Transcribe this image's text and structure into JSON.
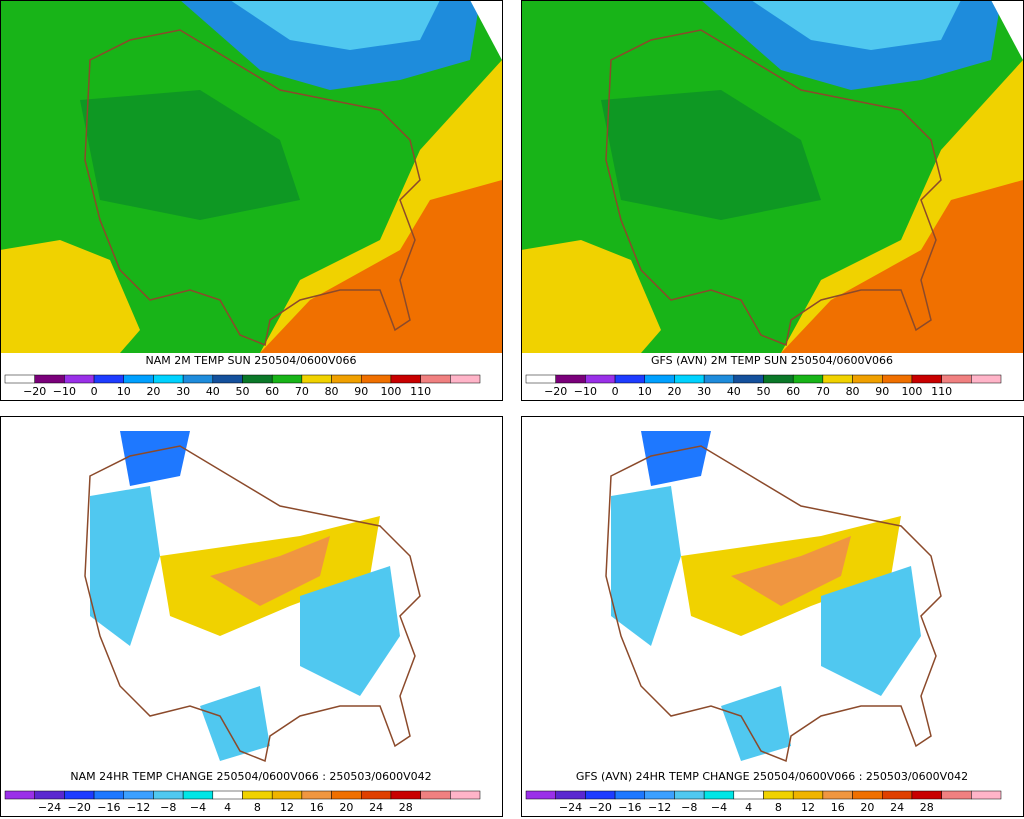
{
  "panels": [
    {
      "title": "NAM 2M TEMP  SUN 250504/0600V066",
      "colorbar": {
        "labels": [
          "−20",
          "−10",
          "0",
          "10",
          "20",
          "30",
          "40",
          "50",
          "60",
          "70",
          "80",
          "90",
          "100",
          "110"
        ],
        "colors": [
          "#ffffff",
          "#7a007a",
          "#9a30e8",
          "#1e3cff",
          "#00a0ff",
          "#00d2ff",
          "#1e8cdc",
          "#14509c",
          "#0a7828",
          "#18b418",
          "#f0d200",
          "#f0a000",
          "#f07000",
          "#c80000",
          "#f08080",
          "#ffb4c8"
        ]
      }
    },
    {
      "title": "GFS (AVN) 2M TEMP  SUN 250504/0600V066",
      "colorbar": {
        "labels": [
          "−20",
          "−10",
          "0",
          "10",
          "20",
          "30",
          "40",
          "50",
          "60",
          "70",
          "80",
          "90",
          "100",
          "110"
        ],
        "colors": [
          "#ffffff",
          "#7a007a",
          "#9a30e8",
          "#1e3cff",
          "#00a0ff",
          "#00d2ff",
          "#1e8cdc",
          "#14509c",
          "#0a7828",
          "#18b418",
          "#f0d200",
          "#f0a000",
          "#f07000",
          "#c80000",
          "#f08080",
          "#ffb4c8"
        ]
      }
    },
    {
      "title": "NAM 24HR TEMP CHANGE 250504/0600V066 : 250503/0600V042",
      "colorbar": {
        "labels": [
          "−24",
          "−20",
          "−16",
          "−12",
          "−8",
          "−4",
          "4",
          "8",
          "12",
          "16",
          "20",
          "24",
          "28"
        ],
        "colors": [
          "#9a30e8",
          "#5a28d0",
          "#1e3cff",
          "#1e78ff",
          "#3ca0ff",
          "#50c8f0",
          "#00e6e6",
          "#ffffff",
          "#f0d200",
          "#f0b400",
          "#f09640",
          "#f07000",
          "#e04000",
          "#c80000",
          "#f08080",
          "#ffb4c8"
        ]
      }
    },
    {
      "title": "GFS (AVN) 24HR TEMP CHANGE 250504/0600V066 : 250503/0600V042",
      "colorbar": {
        "labels": [
          "−24",
          "−20",
          "−16",
          "−12",
          "−8",
          "−4",
          "4",
          "8",
          "12",
          "16",
          "20",
          "24",
          "28"
        ],
        "colors": [
          "#9a30e8",
          "#5a28d0",
          "#1e3cff",
          "#1e78ff",
          "#3ca0ff",
          "#50c8f0",
          "#00e6e6",
          "#ffffff",
          "#f0d200",
          "#f0b400",
          "#f09640",
          "#f07000",
          "#e04000",
          "#c80000",
          "#f08080",
          "#ffb4c8"
        ]
      }
    }
  ]
}
